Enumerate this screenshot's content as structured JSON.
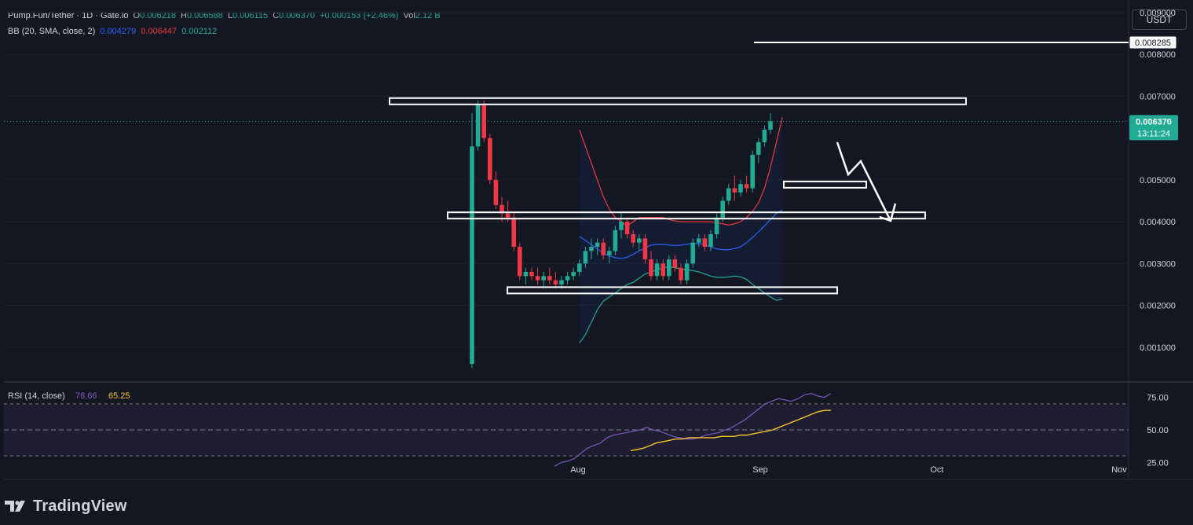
{
  "header": {
    "symbol": "Pump.Fun/Tether · 1D · Gate.io",
    "o_label": "O",
    "o_value": "0.006218",
    "h_label": "H",
    "h_value": "0.006588",
    "l_label": "L",
    "l_value": "0.006115",
    "c_label": "C",
    "c_value": "0.006370",
    "change": "+0.000153 (+2.46%)",
    "vol_label": "Vol",
    "vol_value": "2.12 B",
    "bb_label": "BB (20, SMA, close, 2)",
    "bb_basis": "0.004279",
    "bb_upper": "0.006447",
    "bb_lower": "0.002112"
  },
  "currency_button": "USDT",
  "brand": "TradingView",
  "colors": {
    "background": "#131722",
    "up": "#22ab94",
    "down": "#f23645",
    "bb_basis": "#2962ff",
    "bb_upper": "#f23645",
    "bb_lower": "#22ab94",
    "rsi_line": "#7e57c2",
    "rsi_ma": "#f7c325",
    "annotation": "#ffffff",
    "axis_text": "#d1d4dc"
  },
  "chart_data": [
    {
      "type": "candlestick",
      "title": "Pump.Fun/Tether · 1D · Gate.io",
      "y_axis_labels": [
        "0.009000",
        "0.008000",
        "0.007000",
        "0.005000",
        "0.004000",
        "0.003000",
        "0.002000",
        "0.001000"
      ],
      "ylim": [
        0.0,
        0.0093
      ],
      "x_axis_labels": [
        "Aug",
        "Sep",
        "Oct",
        "Nov"
      ],
      "price_tag": "0.006370",
      "countdown": "13:11:24",
      "level_tag": "0.008285",
      "levels": [
        0.008285,
        0.00688,
        0.004887,
        0.004149,
        0.00236
      ],
      "candles": [
        [
          0.0006,
          0.0066,
          0.0005,
          0.0058
        ],
        [
          0.0058,
          0.0069,
          0.0057,
          0.0068
        ],
        [
          0.0068,
          0.0069,
          0.0059,
          0.006
        ],
        [
          0.006,
          0.0061,
          0.0049,
          0.005
        ],
        [
          0.005,
          0.0052,
          0.0043,
          0.0044
        ],
        [
          0.0044,
          0.0046,
          0.004,
          0.0042
        ],
        [
          0.0042,
          0.0045,
          0.004,
          0.0041
        ],
        [
          0.0041,
          0.0042,
          0.0033,
          0.0034
        ],
        [
          0.0034,
          0.0035,
          0.0026,
          0.0027
        ],
        [
          0.0027,
          0.0029,
          0.0025,
          0.0028
        ],
        [
          0.0028,
          0.0029,
          0.0026,
          0.0027
        ],
        [
          0.0027,
          0.0029,
          0.0025,
          0.0026
        ],
        [
          0.0026,
          0.0028,
          0.0024,
          0.0027
        ],
        [
          0.0027,
          0.0029,
          0.0025,
          0.0026
        ],
        [
          0.0026,
          0.0028,
          0.0024,
          0.0025
        ],
        [
          0.0025,
          0.0027,
          0.0024,
          0.0026
        ],
        [
          0.0026,
          0.0028,
          0.0025,
          0.0027
        ],
        [
          0.0027,
          0.0029,
          0.0026,
          0.0028
        ],
        [
          0.0028,
          0.0031,
          0.0027,
          0.003
        ],
        [
          0.003,
          0.0034,
          0.0029,
          0.0033
        ],
        [
          0.0033,
          0.0036,
          0.0031,
          0.0034
        ],
        [
          0.0034,
          0.0036,
          0.0032,
          0.0035
        ],
        [
          0.0035,
          0.0036,
          0.0031,
          0.0032
        ],
        [
          0.0032,
          0.0034,
          0.003,
          0.0033
        ],
        [
          0.0033,
          0.0039,
          0.0032,
          0.0038
        ],
        [
          0.0038,
          0.0042,
          0.0036,
          0.004
        ],
        [
          0.004,
          0.0041,
          0.0036,
          0.0037
        ],
        [
          0.0037,
          0.0038,
          0.0034,
          0.0035
        ],
        [
          0.0035,
          0.0037,
          0.0033,
          0.0036
        ],
        [
          0.0036,
          0.0037,
          0.003,
          0.0031
        ],
        [
          0.0031,
          0.0033,
          0.0026,
          0.0027
        ],
        [
          0.0027,
          0.0031,
          0.0026,
          0.003
        ],
        [
          0.003,
          0.0031,
          0.0026,
          0.0027
        ],
        [
          0.0027,
          0.0032,
          0.0026,
          0.0031
        ],
        [
          0.0031,
          0.0032,
          0.0028,
          0.0029
        ],
        [
          0.0029,
          0.003,
          0.0025,
          0.0026
        ],
        [
          0.0026,
          0.0031,
          0.0025,
          0.003
        ],
        [
          0.003,
          0.0036,
          0.0029,
          0.0035
        ],
        [
          0.0035,
          0.0037,
          0.0034,
          0.0036
        ],
        [
          0.0036,
          0.0037,
          0.0033,
          0.0034
        ],
        [
          0.0034,
          0.0038,
          0.0033,
          0.0037
        ],
        [
          0.0037,
          0.0042,
          0.0036,
          0.0041
        ],
        [
          0.0041,
          0.0046,
          0.004,
          0.0045
        ],
        [
          0.0045,
          0.0049,
          0.0044,
          0.0048
        ],
        [
          0.0048,
          0.0051,
          0.0045,
          0.0047
        ],
        [
          0.0047,
          0.005,
          0.0046,
          0.0049
        ],
        [
          0.0049,
          0.0051,
          0.0047,
          0.0048
        ],
        [
          0.0048,
          0.0057,
          0.0047,
          0.0056
        ],
        [
          0.0056,
          0.006,
          0.0054,
          0.0059
        ],
        [
          0.0059,
          0.0063,
          0.0058,
          0.0062
        ],
        [
          0.0062,
          0.0066,
          0.0061,
          0.0064
        ]
      ],
      "bollinger": {
        "label": "BB (20, SMA, close, 2)",
        "basis": [
          0.00365,
          0.00355,
          0.00345,
          0.00335,
          0.00325,
          0.00318,
          0.00314,
          0.00312,
          0.00315,
          0.00322,
          0.0033,
          0.00338,
          0.00344,
          0.00346,
          0.00346,
          0.00344,
          0.00343,
          0.00344,
          0.00346,
          0.00348,
          0.00348,
          0.00345,
          0.0034,
          0.00335,
          0.00333,
          0.00333,
          0.00336,
          0.0034,
          0.0035,
          0.00362,
          0.00376,
          0.0039,
          0.00405,
          0.0042,
          0.00428
        ],
        "upper": [
          0.0062,
          0.0058,
          0.0054,
          0.005,
          0.0046,
          0.0043,
          0.0041,
          0.004,
          0.0039,
          0.004,
          0.0041,
          0.0041,
          0.0041,
          0.0041,
          0.0041,
          0.00405,
          0.00402,
          0.004,
          0.004,
          0.004,
          0.004,
          0.004,
          0.004,
          0.00398,
          0.00395,
          0.00392,
          0.00395,
          0.004,
          0.0041,
          0.00425,
          0.00445,
          0.0048,
          0.0053,
          0.0059,
          0.0065
        ],
        "lower": [
          0.0011,
          0.0013,
          0.0016,
          0.0019,
          0.0021,
          0.0022,
          0.0023,
          0.0024,
          0.0025,
          0.00255,
          0.00265,
          0.00275,
          0.0028,
          0.00285,
          0.0029,
          0.00292,
          0.0029,
          0.00287,
          0.00285,
          0.00283,
          0.0028,
          0.00275,
          0.0027,
          0.00267,
          0.00267,
          0.00268,
          0.0027,
          0.00268,
          0.00262,
          0.0025,
          0.0024,
          0.0023,
          0.0022,
          0.00212,
          0.00215
        ]
      }
    },
    {
      "type": "line",
      "title": "RSI (14, close)",
      "values_text": [
        "78.66",
        "65.25"
      ],
      "y_axis_labels": [
        "75.00",
        "50.00",
        "25.00"
      ],
      "ylim": [
        15,
        85
      ],
      "bands": [
        70,
        50,
        30
      ],
      "series": [
        {
          "name": "RSI",
          "values": [
            22,
            25,
            26,
            28,
            32,
            36,
            38,
            40,
            44,
            46,
            47,
            48,
            49,
            50,
            52,
            50,
            49,
            47,
            45,
            44,
            43,
            43,
            44,
            46,
            47,
            48,
            50,
            52,
            55,
            58,
            62,
            66,
            70,
            72,
            74,
            73,
            72,
            74,
            77,
            78,
            76,
            75,
            78
          ]
        },
        {
          "name": "MA",
          "values": [
            34,
            35,
            36,
            38,
            40,
            41,
            42,
            43,
            43,
            44,
            44,
            44,
            44,
            44,
            45,
            45,
            45,
            46,
            46,
            47,
            48,
            49,
            50,
            52,
            54,
            56,
            58,
            60,
            62,
            64,
            65,
            65
          ]
        }
      ]
    }
  ]
}
